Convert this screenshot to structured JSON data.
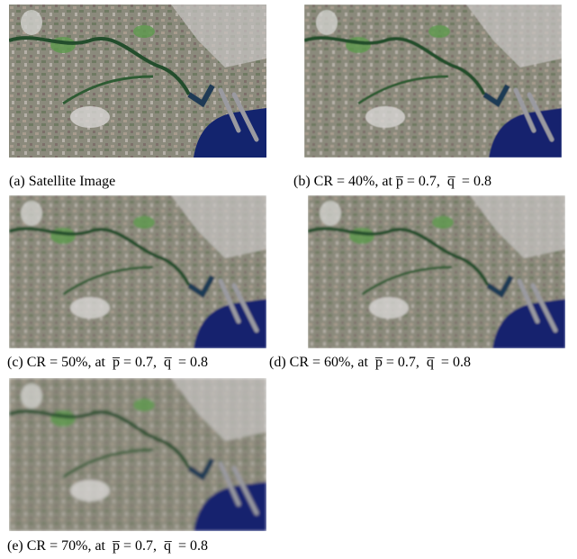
{
  "panels": [
    {
      "caption": "(a) Satellite Image"
    },
    {
      "caption": "(b) CR = 40%, at p̅ = 0.7,  q̅  = 0.8"
    },
    {
      "caption": "(c) CR = 50%, at  p̅ = 0.7,  q̅  = 0.8"
    },
    {
      "caption": "(d) CR = 60%, at  p̅ = 0.7,  q̅  = 0.8"
    },
    {
      "caption": "(e) CR = 70%, at  p̅ = 0.7,  q̅  = 0.8"
    }
  ]
}
